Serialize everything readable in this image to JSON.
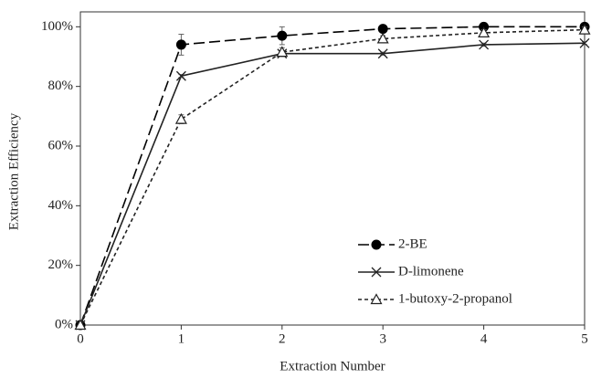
{
  "chart_data": {
    "type": "line",
    "x_label": "Extraction Number",
    "y_label": "Extraction Efficiency",
    "x": [
      0,
      1,
      2,
      3,
      4,
      5
    ],
    "xlim": [
      0,
      5
    ],
    "xticks": [
      0,
      1,
      2,
      3,
      4,
      5
    ],
    "ylim": [
      0,
      105
    ],
    "yticks": [
      {
        "value": 0,
        "label": "0%"
      },
      {
        "value": 20,
        "label": "20%"
      },
      {
        "value": 40,
        "label": "40%"
      },
      {
        "value": 60,
        "label": "60%"
      },
      {
        "value": 80,
        "label": "80%"
      },
      {
        "value": 100,
        "label": "100%"
      }
    ],
    "grid": false,
    "legend": "lower right",
    "series": [
      {
        "name": "2-BE",
        "color": "#000000",
        "marker": "circle",
        "dash": "long",
        "values": [
          0,
          94,
          97,
          99.3,
          100,
          100
        ],
        "errors": [
          0,
          3.5,
          3,
          0.6,
          0.5,
          0.5
        ]
      },
      {
        "name": "D-limonene",
        "color": "#222222",
        "marker": "x",
        "dash": "solid",
        "values": [
          0,
          83.5,
          91,
          91,
          94,
          94.5
        ],
        "errors": [
          0,
          0.5,
          0.5,
          0.5,
          0.5,
          0.5
        ]
      },
      {
        "name": "1-butoxy-2-propanol",
        "color": "#222222",
        "marker": "triangle",
        "dash": "short",
        "values": [
          0,
          69,
          91.5,
          96,
          98,
          99
        ],
        "errors": [
          0,
          1.5,
          1.5,
          1,
          1,
          1
        ]
      }
    ]
  }
}
